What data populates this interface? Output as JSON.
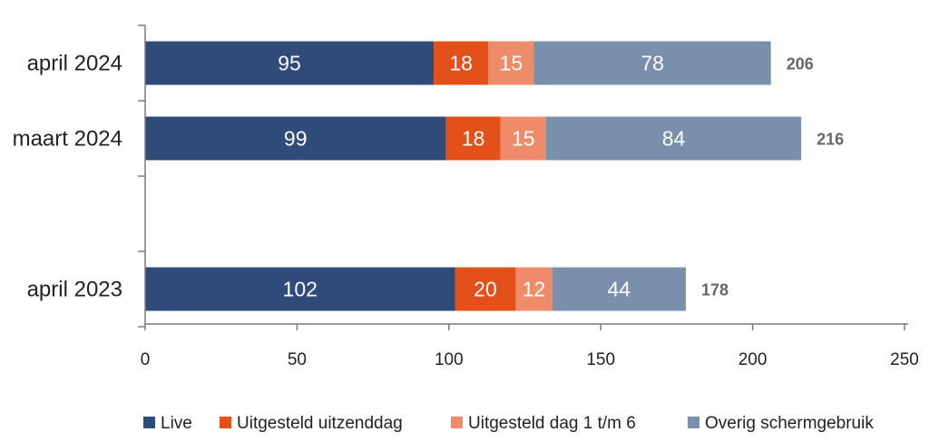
{
  "chart_data": {
    "type": "bar",
    "orientation": "horizontal",
    "stacked": true,
    "categories": [
      "april 2024",
      "maart 2024",
      "",
      "april 2023"
    ],
    "series": [
      {
        "name": "Live",
        "values": [
          95,
          99,
          null,
          102
        ],
        "color": "#2e4b7a"
      },
      {
        "name": "Uitgesteld uitzenddag",
        "values": [
          18,
          18,
          null,
          20
        ],
        "color": "#e4501a"
      },
      {
        "name": "Uitgesteld dag 1 t/m 6",
        "values": [
          15,
          15,
          null,
          12
        ],
        "color": "#ee8c6a"
      },
      {
        "name": "Overig schermgebruik",
        "values": [
          78,
          84,
          null,
          44
        ],
        "color": "#7990ad"
      }
    ],
    "totals": [
      206,
      216,
      null,
      178
    ],
    "xlim": [
      0,
      250
    ],
    "xticks": [
      0,
      50,
      100,
      150,
      200,
      250
    ],
    "grid": false,
    "legend": "bottom"
  }
}
